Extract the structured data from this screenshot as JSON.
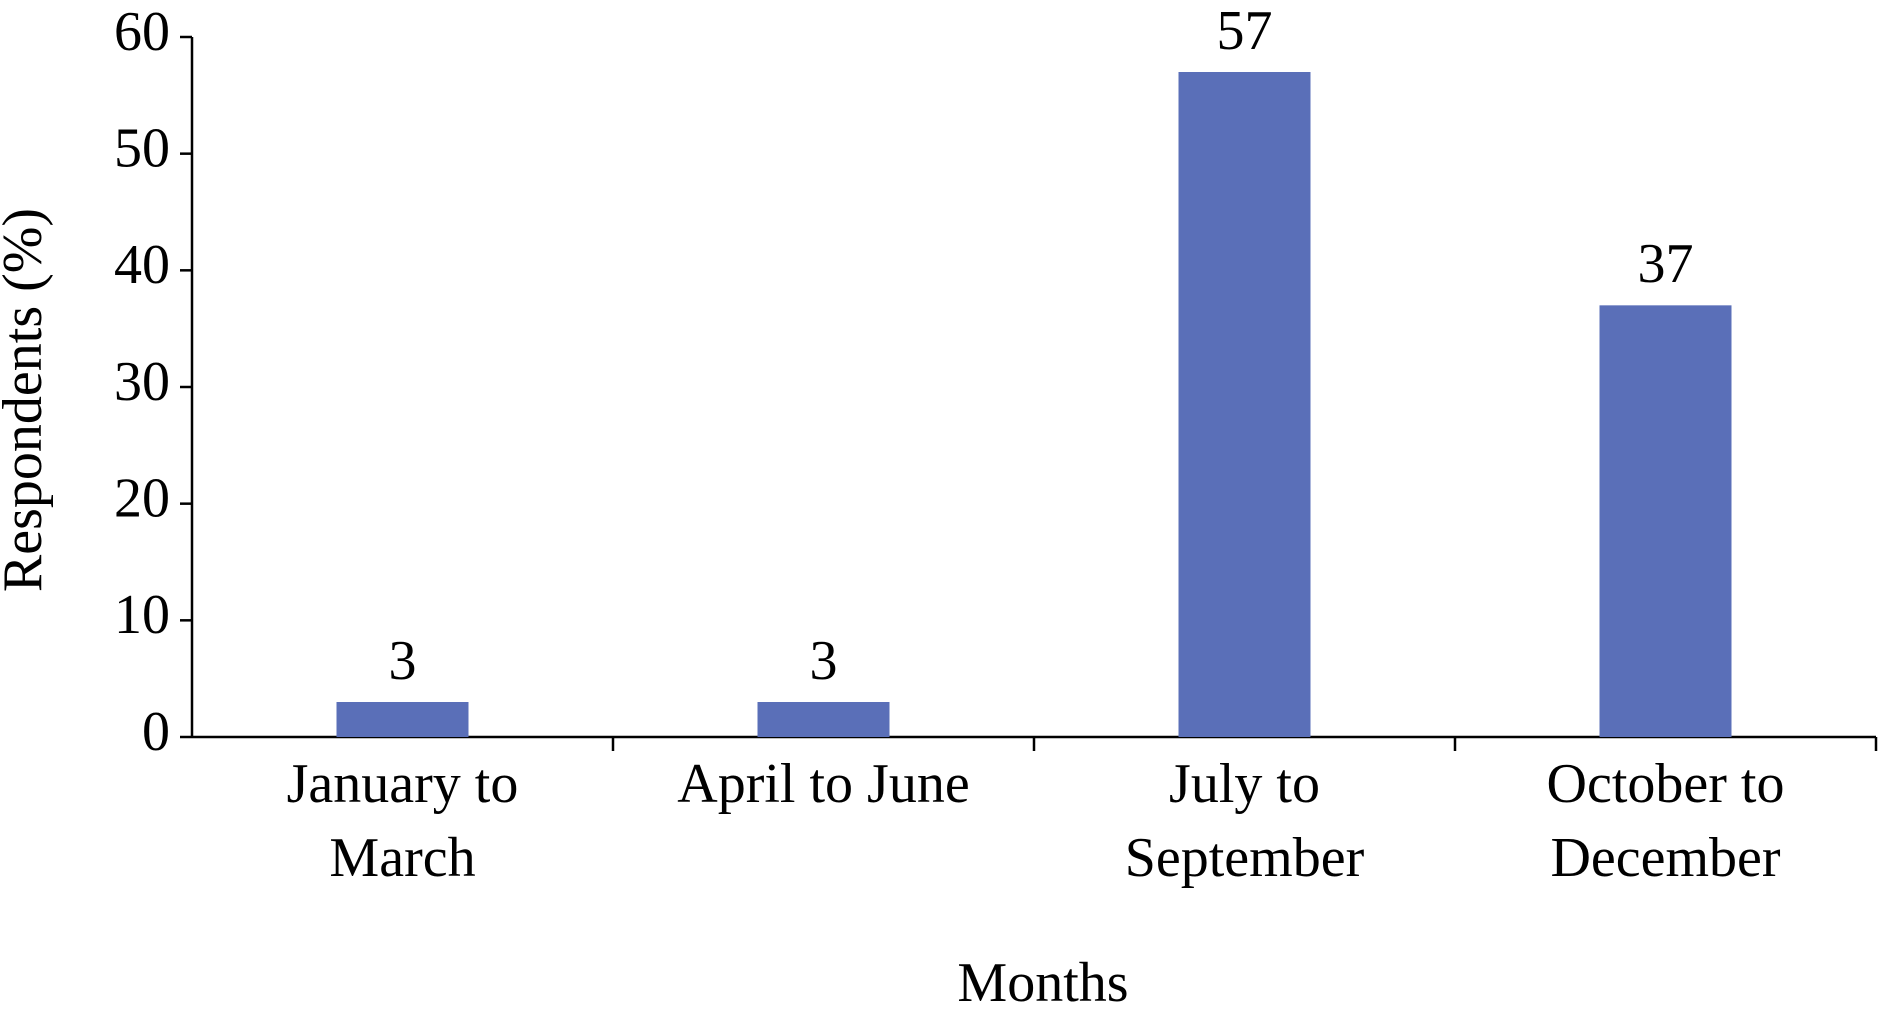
{
  "chart_data": {
    "type": "bar",
    "categories": [
      "January to March",
      "April to June",
      "July to September",
      "October to December"
    ],
    "values": [
      3,
      3,
      57,
      37
    ],
    "color": "#5a6fb8",
    "xlabel": "Months",
    "ylabel": "Respondents (%)",
    "ylim": [
      0,
      60
    ],
    "yticks": [
      0,
      10,
      20,
      30,
      40,
      50,
      60
    ],
    "grid": false
  }
}
